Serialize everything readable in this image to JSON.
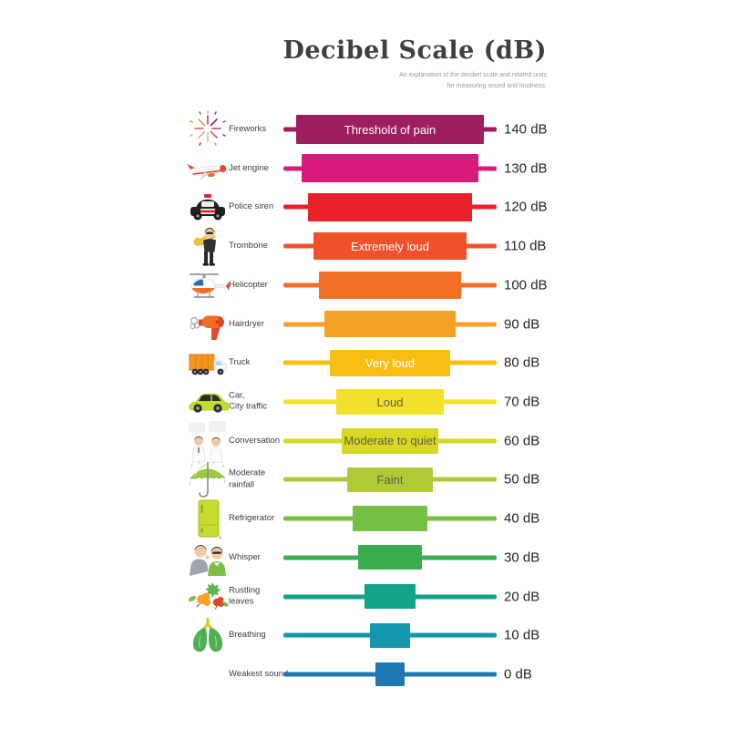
{
  "header": {
    "title": "Decibel Scale (dB)",
    "subtitle_line1": "An explanation of the decibel scale and related units",
    "subtitle_line2": "for measuring sound and loudness."
  },
  "chart_data": {
    "type": "bar",
    "orientation": "horizontal",
    "title": "Decibel Scale (dB)",
    "unit": "dB",
    "xlim": [
      0,
      140
    ],
    "categories": [
      "Fireworks",
      "Jet engine",
      "Police siren",
      "Trombone",
      "Helicopter",
      "Hairdryer",
      "Truck",
      "Car, City traffic",
      "Conversation",
      "Moderate rainfall",
      "Refrigerator",
      "Whisper",
      "Rustling leaves",
      "Breathing",
      "Weakest sound"
    ],
    "values": [
      140,
      130,
      120,
      110,
      100,
      90,
      80,
      70,
      60,
      50,
      40,
      30,
      20,
      10,
      0
    ],
    "rows": [
      {
        "label": "Fireworks",
        "db": 140,
        "value_label": "140 dB",
        "bar_text": "Threshold of pain",
        "bar_text_color": "#FFFFFF",
        "color": "#9D1D5E",
        "icon": "fireworks-icon"
      },
      {
        "label": "Jet engine",
        "db": 130,
        "value_label": "130 dB",
        "bar_text": "",
        "color": "#D81B7B",
        "icon": "jet-engine-icon"
      },
      {
        "label": "Police siren",
        "db": 120,
        "value_label": "120 dB",
        "bar_text": "",
        "color": "#E8212A",
        "icon": "police-car-icon"
      },
      {
        "label": "Trombone",
        "db": 110,
        "value_label": "110 dB",
        "bar_text": "Extremely loud",
        "bar_text_color": "#FFFFFF",
        "color": "#F0512B",
        "icon": "trombone-player-icon"
      },
      {
        "label": "Helicopter",
        "db": 100,
        "value_label": "100 dB",
        "bar_text": "",
        "color": "#F26E23",
        "icon": "helicopter-icon"
      },
      {
        "label": "Hairdryer",
        "db": 90,
        "value_label": "90 dB",
        "bar_text": "",
        "color": "#F5A124",
        "icon": "hairdryer-icon"
      },
      {
        "label": "Truck",
        "db": 80,
        "value_label": "80 dB",
        "bar_text": "Very loud",
        "bar_text_color": "#FFFFFF",
        "color": "#F9BE13",
        "icon": "truck-icon"
      },
      {
        "label": "Car,\nCity traffic",
        "db": 70,
        "value_label": "70 dB",
        "bar_text": "Loud",
        "bar_text_color": "#5E5E41",
        "color": "#F3E02A",
        "icon": "car-icon"
      },
      {
        "label": "Conversation",
        "db": 60,
        "value_label": "60 dB",
        "bar_text": "Moderate to quiet",
        "bar_text_color": "#5E5E41",
        "color": "#D6D823",
        "icon": "conversation-icon"
      },
      {
        "label": "Moderate\nrainfall",
        "db": 50,
        "value_label": "50 dB",
        "bar_text": "Faint",
        "bar_text_color": "#5E5E41",
        "color": "#AECB37",
        "icon": "umbrella-rain-icon"
      },
      {
        "label": "Refrigerator",
        "db": 40,
        "value_label": "40 dB",
        "bar_text": "",
        "color": "#76BF45",
        "icon": "refrigerator-icon"
      },
      {
        "label": "Whisper",
        "db": 30,
        "value_label": "30 dB",
        "bar_text": "",
        "color": "#3BAC4D",
        "icon": "whisper-icon"
      },
      {
        "label": "Rustling\nleaves",
        "db": 20,
        "value_label": "20 dB",
        "bar_text": "",
        "color": "#12A388",
        "icon": "leaves-icon"
      },
      {
        "label": "Breathing",
        "db": 10,
        "value_label": "10 dB",
        "bar_text": "",
        "color": "#1397AE",
        "icon": "lungs-icon"
      },
      {
        "label": "Weakest sound",
        "db": 0,
        "value_label": "0 dB",
        "bar_text": "",
        "color": "#1D78B5",
        "icon": ""
      }
    ]
  }
}
